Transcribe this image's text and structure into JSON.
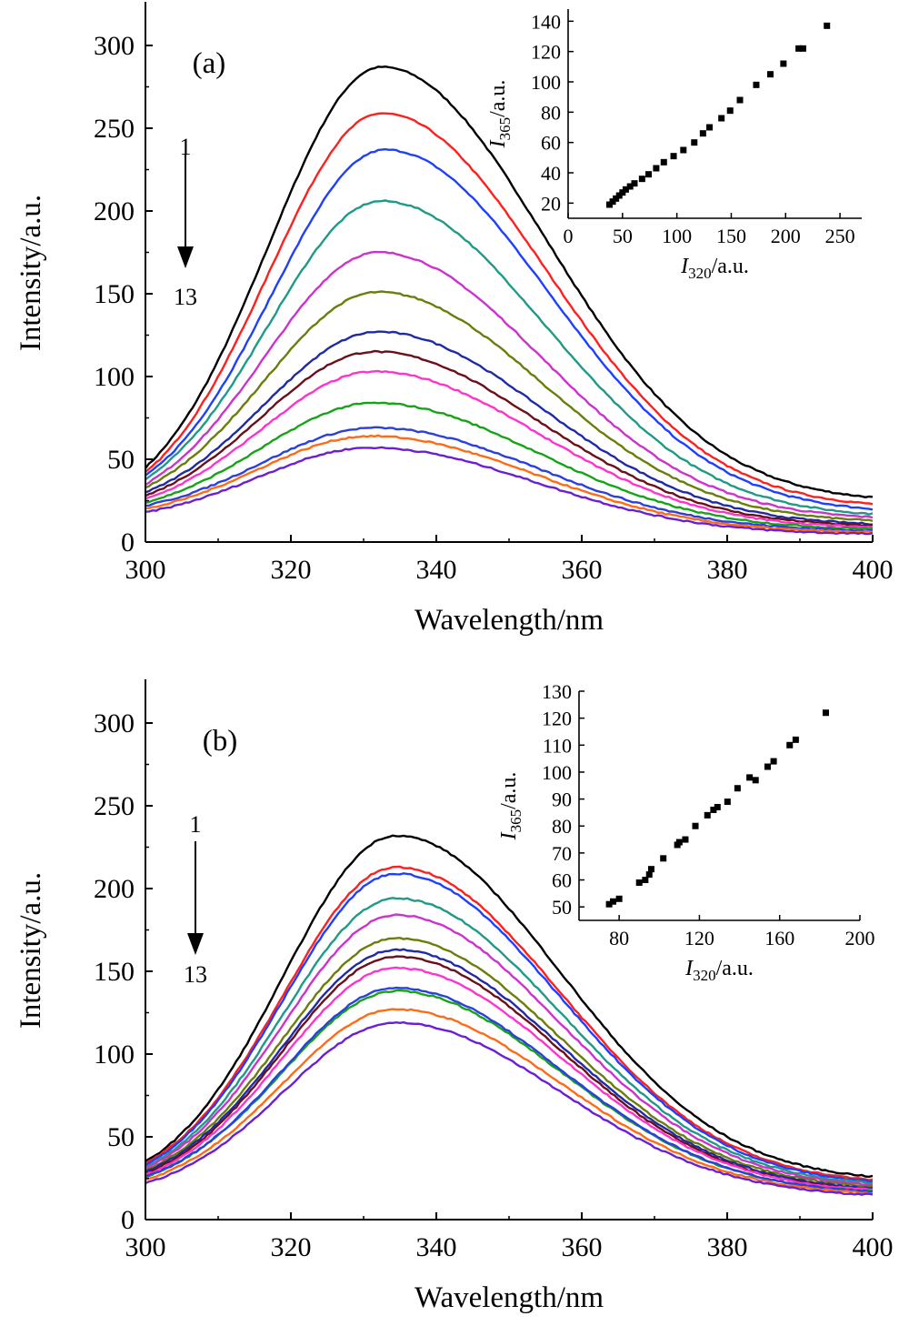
{
  "chart_data": [
    {
      "type": "line",
      "panel": "(a)",
      "xlabel": "Wavelength/nm",
      "ylabel": "Intensity/a.u.",
      "xlim": [
        300,
        400
      ],
      "ylim": [
        0,
        325
      ],
      "xticks": [
        "300",
        "320",
        "340",
        "360",
        "380",
        "400"
      ],
      "yticks": [
        "0",
        "50",
        "100",
        "150",
        "200",
        "250",
        "300"
      ],
      "arrow": {
        "from": "1",
        "to": "13"
      },
      "series": [
        {
          "color": "#000000",
          "peak_x": 332.5,
          "values": [
            {
              "x": 300,
              "y": 45
            },
            {
              "x": 332.5,
              "y": 287
            },
            {
              "x": 400,
              "y": 27
            }
          ]
        },
        {
          "color": "#ff1f1f",
          "peak_x": 332.5,
          "values": [
            {
              "x": 300,
              "y": 42
            },
            {
              "x": 332.5,
              "y": 259
            },
            {
              "x": 400,
              "y": 23
            }
          ]
        },
        {
          "color": "#1f3fff",
          "peak_x": 333.0,
          "values": [
            {
              "x": 300,
              "y": 40
            },
            {
              "x": 333,
              "y": 237
            },
            {
              "x": 400,
              "y": 20
            }
          ]
        },
        {
          "color": "#1f9a86",
          "peak_x": 332.5,
          "values": [
            {
              "x": 300,
              "y": 38
            },
            {
              "x": 332.5,
              "y": 206
            },
            {
              "x": 400,
              "y": 17
            }
          ]
        },
        {
          "color": "#cc33cc",
          "peak_x": 332.0,
          "values": [
            {
              "x": 300,
              "y": 35
            },
            {
              "x": 332,
              "y": 175
            },
            {
              "x": 400,
              "y": 15
            }
          ]
        },
        {
          "color": "#6b7d0a",
          "peak_x": 332.0,
          "values": [
            {
              "x": 300,
              "y": 33
            },
            {
              "x": 332,
              "y": 151
            },
            {
              "x": 400,
              "y": 13
            }
          ]
        },
        {
          "color": "#1f2aa6",
          "peak_x": 332.0,
          "values": [
            {
              "x": 300,
              "y": 30
            },
            {
              "x": 332,
              "y": 127
            },
            {
              "x": 400,
              "y": 11
            }
          ]
        },
        {
          "color": "#6b0f1a",
          "peak_x": 331.5,
          "values": [
            {
              "x": 300,
              "y": 28
            },
            {
              "x": 331.5,
              "y": 115
            },
            {
              "x": 400,
              "y": 10
            }
          ]
        },
        {
          "color": "#ff33cc",
          "peak_x": 331.5,
          "values": [
            {
              "x": 300,
              "y": 26
            },
            {
              "x": 331.5,
              "y": 103
            },
            {
              "x": 400,
              "y": 9
            }
          ]
        },
        {
          "color": "#17a317",
          "peak_x": 331.5,
          "values": [
            {
              "x": 300,
              "y": 24
            },
            {
              "x": 331.5,
              "y": 84
            },
            {
              "x": 400,
              "y": 8
            }
          ]
        },
        {
          "color": "#2a3fe0",
          "peak_x": 331.5,
          "values": [
            {
              "x": 300,
              "y": 22
            },
            {
              "x": 331.5,
              "y": 69
            },
            {
              "x": 400,
              "y": 7
            }
          ]
        },
        {
          "color": "#ff6a14",
          "peak_x": 331.0,
          "values": [
            {
              "x": 300,
              "y": 20
            },
            {
              "x": 331,
              "y": 64
            },
            {
              "x": 400,
              "y": 6
            }
          ]
        },
        {
          "color": "#6a1fd6",
          "peak_x": 331.0,
          "values": [
            {
              "x": 300,
              "y": 18
            },
            {
              "x": 331,
              "y": 57
            },
            {
              "x": 400,
              "y": 5
            }
          ]
        }
      ],
      "inset": {
        "type": "scatter",
        "xlabel": "I320/a.u.",
        "ylabel": "I365/a.u.",
        "xlim": [
          0,
          270
        ],
        "ylim": [
          10,
          148
        ],
        "xticks": [
          "0",
          "50",
          "100",
          "150",
          "200",
          "250"
        ],
        "yticks": [
          "20",
          "40",
          "60",
          "80",
          "100",
          "120",
          "140"
        ],
        "points": [
          {
            "x": 38,
            "y": 19
          },
          {
            "x": 41,
            "y": 21
          },
          {
            "x": 44,
            "y": 23
          },
          {
            "x": 47,
            "y": 25
          },
          {
            "x": 50,
            "y": 27
          },
          {
            "x": 53,
            "y": 29
          },
          {
            "x": 57,
            "y": 31
          },
          {
            "x": 61,
            "y": 33
          },
          {
            "x": 68,
            "y": 36
          },
          {
            "x": 74,
            "y": 39
          },
          {
            "x": 81,
            "y": 43
          },
          {
            "x": 88,
            "y": 47
          },
          {
            "x": 97,
            "y": 51
          },
          {
            "x": 106,
            "y": 55
          },
          {
            "x": 116,
            "y": 60
          },
          {
            "x": 124,
            "y": 66
          },
          {
            "x": 130,
            "y": 70
          },
          {
            "x": 141,
            "y": 76
          },
          {
            "x": 149,
            "y": 81
          },
          {
            "x": 158,
            "y": 88
          },
          {
            "x": 173,
            "y": 98
          },
          {
            "x": 186,
            "y": 105
          },
          {
            "x": 198,
            "y": 112
          },
          {
            "x": 212,
            "y": 122
          },
          {
            "x": 216,
            "y": 122
          },
          {
            "x": 238,
            "y": 137
          }
        ]
      }
    },
    {
      "type": "line",
      "panel": "(b)",
      "xlabel": "Wavelength/nm",
      "ylabel": "Intensity/a.u.",
      "xlim": [
        300,
        400
      ],
      "ylim": [
        0,
        325
      ],
      "xticks": [
        "300",
        "320",
        "340",
        "360",
        "380",
        "400"
      ],
      "yticks": [
        "0",
        "50",
        "100",
        "150",
        "200",
        "250",
        "300"
      ],
      "arrow": {
        "from": "1",
        "to": "13"
      },
      "series": [
        {
          "color": "#000000",
          "peak_x": 334.5,
          "values": [
            {
              "x": 300,
              "y": 35
            },
            {
              "x": 334.5,
              "y": 232
            },
            {
              "x": 400,
              "y": 26
            }
          ]
        },
        {
          "color": "#ff1f1f",
          "peak_x": 334.5,
          "values": [
            {
              "x": 300,
              "y": 34
            },
            {
              "x": 334.5,
              "y": 213
            },
            {
              "x": 400,
              "y": 24
            }
          ]
        },
        {
          "color": "#1f3fff",
          "peak_x": 334.5,
          "values": [
            {
              "x": 300,
              "y": 33
            },
            {
              "x": 334.5,
              "y": 209
            },
            {
              "x": 400,
              "y": 23
            }
          ]
        },
        {
          "color": "#1f9a86",
          "peak_x": 334.5,
          "values": [
            {
              "x": 300,
              "y": 32
            },
            {
              "x": 334.5,
              "y": 194
            },
            {
              "x": 400,
              "y": 22
            }
          ]
        },
        {
          "color": "#cc33cc",
          "peak_x": 334.5,
          "values": [
            {
              "x": 300,
              "y": 31
            },
            {
              "x": 334.5,
              "y": 184
            },
            {
              "x": 400,
              "y": 21
            }
          ]
        },
        {
          "color": "#6b7d0a",
          "peak_x": 334.5,
          "values": [
            {
              "x": 300,
              "y": 30
            },
            {
              "x": 334.5,
              "y": 170
            },
            {
              "x": 400,
              "y": 20
            }
          ]
        },
        {
          "color": "#1f2aa6",
          "peak_x": 334.5,
          "values": [
            {
              "x": 300,
              "y": 29
            },
            {
              "x": 334.5,
              "y": 163
            },
            {
              "x": 400,
              "y": 19
            }
          ]
        },
        {
          "color": "#6b0f1a",
          "peak_x": 334.5,
          "values": [
            {
              "x": 300,
              "y": 28
            },
            {
              "x": 334.5,
              "y": 159
            },
            {
              "x": 400,
              "y": 18
            }
          ]
        },
        {
          "color": "#ff33cc",
          "peak_x": 334.5,
          "values": [
            {
              "x": 300,
              "y": 27
            },
            {
              "x": 334.5,
              "y": 152
            },
            {
              "x": 400,
              "y": 18
            }
          ]
        },
        {
          "color": "#17a317",
          "peak_x": 334.5,
          "values": [
            {
              "x": 300,
              "y": 26
            },
            {
              "x": 334.5,
              "y": 138
            },
            {
              "x": 400,
              "y": 17
            }
          ]
        },
        {
          "color": "#2a3fe0",
          "peak_x": 334.5,
          "values": [
            {
              "x": 300,
              "y": 26
            },
            {
              "x": 334.5,
              "y": 140
            },
            {
              "x": 400,
              "y": 17
            }
          ]
        },
        {
          "color": "#ff6a14",
          "peak_x": 334.5,
          "values": [
            {
              "x": 300,
              "y": 24
            },
            {
              "x": 334.5,
              "y": 127
            },
            {
              "x": 400,
              "y": 16
            }
          ]
        },
        {
          "color": "#6a1fd6",
          "peak_x": 334.5,
          "values": [
            {
              "x": 300,
              "y": 22
            },
            {
              "x": 334.5,
              "y": 119
            },
            {
              "x": 400,
              "y": 15
            }
          ]
        }
      ],
      "inset": {
        "type": "scatter",
        "xlabel": "I320/a.u.",
        "ylabel": "I365/a.u.",
        "xlim": [
          60,
          200
        ],
        "ylim": [
          45,
          130
        ],
        "xticks": [
          "80",
          "120",
          "160",
          "200"
        ],
        "yticks": [
          "50",
          "60",
          "70",
          "80",
          "90",
          "100",
          "110",
          "120",
          "130"
        ],
        "points": [
          {
            "x": 75,
            "y": 51
          },
          {
            "x": 77,
            "y": 52
          },
          {
            "x": 80,
            "y": 53
          },
          {
            "x": 90,
            "y": 59
          },
          {
            "x": 93,
            "y": 60
          },
          {
            "x": 95,
            "y": 62
          },
          {
            "x": 96,
            "y": 64
          },
          {
            "x": 102,
            "y": 68
          },
          {
            "x": 109,
            "y": 73
          },
          {
            "x": 110,
            "y": 74
          },
          {
            "x": 113,
            "y": 75
          },
          {
            "x": 118,
            "y": 80
          },
          {
            "x": 124,
            "y": 84
          },
          {
            "x": 127,
            "y": 86
          },
          {
            "x": 129,
            "y": 87
          },
          {
            "x": 134,
            "y": 89
          },
          {
            "x": 139,
            "y": 94
          },
          {
            "x": 145,
            "y": 98
          },
          {
            "x": 148,
            "y": 97
          },
          {
            "x": 154,
            "y": 102
          },
          {
            "x": 157,
            "y": 104
          },
          {
            "x": 165,
            "y": 110
          },
          {
            "x": 168,
            "y": 112
          },
          {
            "x": 183,
            "y": 122
          }
        ]
      }
    }
  ]
}
